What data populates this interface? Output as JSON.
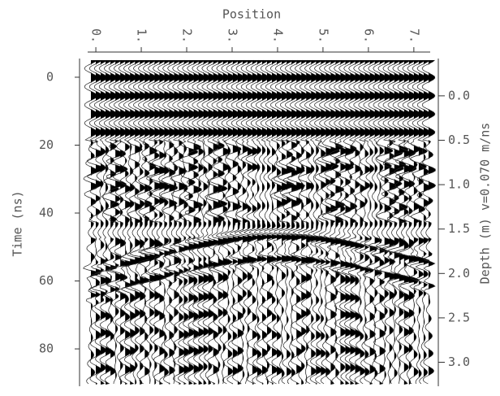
{
  "chart_data": {
    "type": "wiggle",
    "title": "Position",
    "ylabel": "Time (ns)",
    "y2label": "Depth (m) v=0.070 m/ns",
    "xlim": [
      -0.18,
      7.36
    ],
    "xticks": [
      {
        "value": 0,
        "label": "0."
      },
      {
        "value": 1,
        "label": "1."
      },
      {
        "value": 2,
        "label": "2."
      },
      {
        "value": 3,
        "label": "3."
      },
      {
        "value": 4,
        "label": "4."
      },
      {
        "value": 5,
        "label": "5."
      },
      {
        "value": 6,
        "label": "6."
      },
      {
        "value": 7,
        "label": "7."
      }
    ],
    "ylim": [
      -5.5,
      91
    ],
    "yticks": [
      0,
      20,
      40,
      60,
      80
    ],
    "y2lim": [
      -0.42,
      3.27
    ],
    "y2ticks": [
      {
        "value": 0,
        "label": "0.0"
      },
      0.5,
      {
        "value": 1,
        "label": "1.0"
      },
      1.5,
      {
        "value": 2,
        "label": "2.0"
      },
      2.5,
      {
        "value": 3,
        "label": "3.0"
      }
    ]
  }
}
